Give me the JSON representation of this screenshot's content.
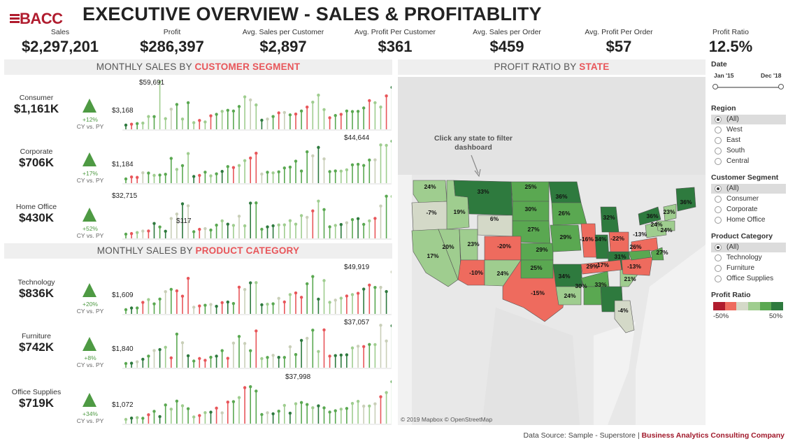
{
  "header": {
    "logo_text": "BACC",
    "title": "EXECUTIVE OVERVIEW - SALES & PROFITABLITY"
  },
  "kpis": [
    {
      "label": "Sales",
      "value": "$2,297,201"
    },
    {
      "label": "Profit",
      "value": "$286,397"
    },
    {
      "label": "Avg. Sales per Customer",
      "value": "$2,897"
    },
    {
      "label": "Avg. Profit Per Customer",
      "value": "$361"
    },
    {
      "label": "Avg. Sales per Order",
      "value": "$459"
    },
    {
      "label": "Avg. Profit Per Order",
      "value": "$57"
    },
    {
      "label": "Profit Ratio",
      "value": "12.5%"
    }
  ],
  "segment_section": {
    "title_prefix": "MONTHLY SALES BY ",
    "title_highlight": "CUSTOMER SEGMENT"
  },
  "category_section": {
    "title_prefix": "MONTHLY SALES BY ",
    "title_highlight": "PRODUCT CATEGORY"
  },
  "map_section": {
    "title_prefix": "PROFIT RATIO BY ",
    "title_highlight": "STATE",
    "note": "Click any state to filter dashboard",
    "credit": "© 2019 Mapbox © OpenStreetMap"
  },
  "rows": [
    {
      "name": "Consumer",
      "amount": "$1,161K",
      "change": "+12%",
      "cy": "CY vs. PY",
      "max_label": "$59,691",
      "min_label": "$3,168",
      "extra_label": ""
    },
    {
      "name": "Corporate",
      "amount": "$706K",
      "change": "+17%",
      "cy": "CY vs. PY",
      "max_label": "$44,644",
      "min_label": "$1,184",
      "extra_label": ""
    },
    {
      "name": "Home Office",
      "amount": "$430K",
      "change": "+52%",
      "cy": "CY vs. PY",
      "max_label": "$32,715",
      "min_label": "$117",
      "extra_label": ""
    },
    {
      "name": "Technology",
      "amount": "$836K",
      "change": "+20%",
      "cy": "CY vs. PY",
      "max_label": "$49,919",
      "min_label": "$1,609",
      "extra_label": ""
    },
    {
      "name": "Furniture",
      "amount": "$742K",
      "change": "+8%",
      "cy": "CY vs. PY",
      "max_label": "$37,057",
      "min_label": "$1,840",
      "extra_label": ""
    },
    {
      "name": "Office Supplies",
      "amount": "$719K",
      "change": "+34%",
      "cy": "CY vs. PY",
      "max_label": "$37,998",
      "min_label": "$1,072",
      "extra_label": ""
    }
  ],
  "filters": {
    "date": {
      "title": "Date",
      "start": "Jan '15",
      "end": "Dec '18"
    },
    "region": {
      "title": "Region",
      "options": [
        "(All)",
        "West",
        "East",
        "South",
        "Central"
      ],
      "selected": 0
    },
    "segment": {
      "title": "Customer Segment",
      "options": [
        "(All)",
        "Consumer",
        "Corporate",
        "Home Office"
      ],
      "selected": 0
    },
    "category": {
      "title": "Product Category",
      "options": [
        "(All)",
        "Technology",
        "Furniture",
        "Office Supplies"
      ],
      "selected": 0
    },
    "legend": {
      "title": "Profit Ratio",
      "min": "-50%",
      "max": "50%",
      "colors": [
        "#b01c2e",
        "#ee6b5e",
        "#d4d9c8",
        "#9fcd8f",
        "#5aa851",
        "#2e7a3e"
      ]
    }
  },
  "states": [
    {
      "label": "24%"
    },
    {
      "label": "-7%"
    },
    {
      "label": "17%"
    },
    {
      "label": "19%"
    },
    {
      "label": "33%"
    },
    {
      "label": "6%"
    },
    {
      "label": "20%"
    },
    {
      "label": "23%"
    },
    {
      "label": "-10%"
    },
    {
      "label": "25%"
    },
    {
      "label": "30%"
    },
    {
      "label": "27%"
    },
    {
      "label": "-20%"
    },
    {
      "label": "24%"
    },
    {
      "label": "-15%"
    },
    {
      "label": "36%"
    },
    {
      "label": "26%"
    },
    {
      "label": "29%"
    },
    {
      "label": "25%"
    },
    {
      "label": "29%"
    },
    {
      "label": "34%"
    },
    {
      "label": "24%"
    },
    {
      "label": "-16%"
    },
    {
      "label": "34%"
    },
    {
      "label": "29%"
    },
    {
      "label": "32%"
    },
    {
      "label": "31%"
    },
    {
      "label": "30%"
    },
    {
      "label": "33%"
    },
    {
      "label": "-22%"
    },
    {
      "label": "-17%"
    },
    {
      "label": "21%"
    },
    {
      "label": "-13%"
    },
    {
      "label": "-13%"
    },
    {
      "label": "26%"
    },
    {
      "label": "36%"
    },
    {
      "label": "27%"
    },
    {
      "label": "24%"
    },
    {
      "label": "23%"
    },
    {
      "label": "24%"
    },
    {
      "label": "36%"
    },
    {
      "label": "-4%"
    }
  ],
  "footer": {
    "source": "Data Source: Sample - Superstore | ",
    "company": "Business Analytics Consulting Company"
  },
  "colors": {
    "accent": "#e8565a",
    "brand": "#b01c2e",
    "positive": "#4e9a43"
  }
}
